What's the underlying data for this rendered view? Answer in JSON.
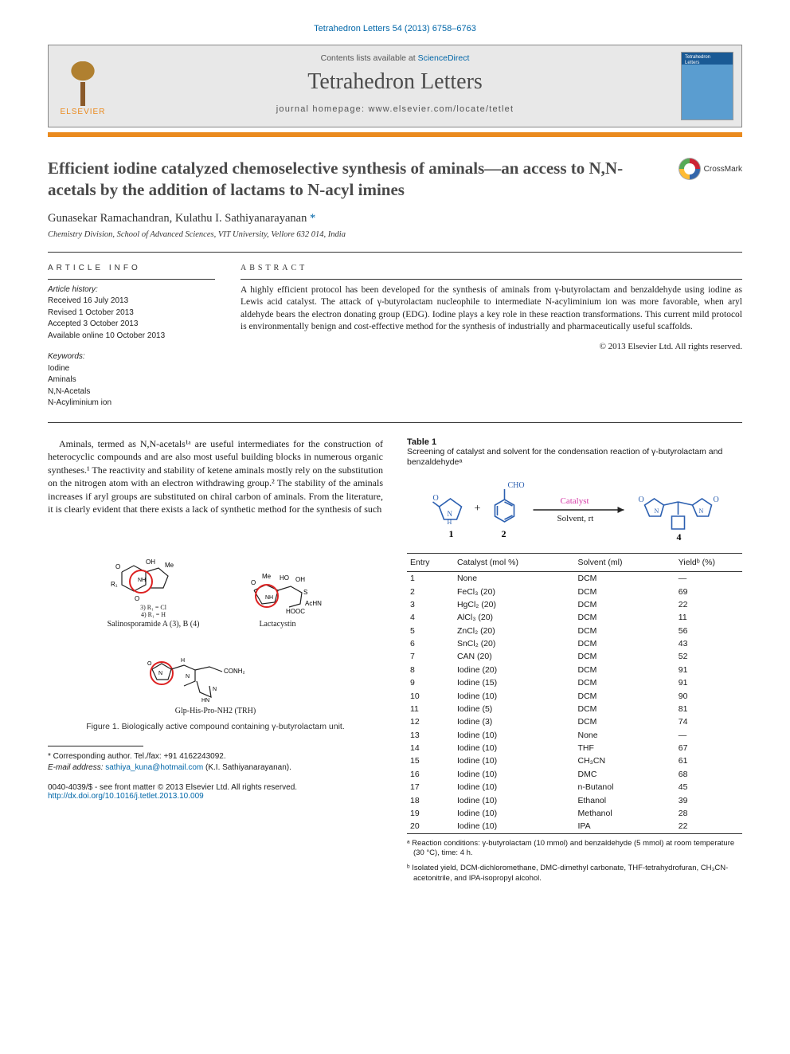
{
  "citation": "Tetrahedron Letters 54 (2013) 6758–6763",
  "masthead": {
    "contents_prefix": "Contents lists available at ",
    "contents_link": "ScienceDirect",
    "journal": "Tetrahedron Letters",
    "homepage_prefix": "journal homepage: ",
    "homepage": "www.elsevier.com/locate/tetlet",
    "publisher": "ELSEVIER",
    "cover_title": "Tetrahedron Letters"
  },
  "colors": {
    "accent_orange": "#ea8a1e",
    "link_blue": "#0066a8",
    "rule": "#333333",
    "masthead_bg": "#e8e8e8",
    "red_highlight": "#d22222"
  },
  "crossmark_label": "CrossMark",
  "title": "Efficient iodine catalyzed chemoselective synthesis of aminals—an access to N,N-acetals by the addition of lactams to N-acyl imines",
  "authors_line": "Gunasekar Ramachandran, Kulathu I. Sathiyanarayanan ",
  "corr_marker": "*",
  "affiliation": "Chemistry Division, School of Advanced Sciences, VIT University, Vellore 632 014, India",
  "article_info": {
    "heading": "article info",
    "history_label": "Article history:",
    "received": "Received 16 July 2013",
    "revised": "Revised 1 October 2013",
    "accepted": "Accepted 3 October 2013",
    "online": "Available online 10 October 2013",
    "keywords_label": "Keywords:",
    "keywords": [
      "Iodine",
      "Aminals",
      "N,N-Acetals",
      "N-Acyliminium ion"
    ]
  },
  "abstract": {
    "heading": "abstract",
    "text": "A highly efficient protocol has been developed for the synthesis of aminals from γ-butyrolactam and benzaldehyde using iodine as Lewis acid catalyst. The attack of γ-butyrolactam nucleophile to intermediate N-acyliminium ion was more favorable, when aryl aldehyde bears the electron donating group (EDG). Iodine plays a key role in these reaction transformations. This current mild protocol is environmentally benign and cost-effective method for the synthesis of industrially and pharmaceutically useful scaffolds.",
    "copyright": "© 2013 Elsevier Ltd. All rights reserved."
  },
  "body_para": "Aminals, termed as N,N-acetals¹ᵃ are useful intermediates for the construction of heterocyclic compounds and are also most useful building blocks in numerous organic syntheses.¹ The reactivity and stability of ketene aminals mostly rely on the substitution on the nitrogen atom with an electron withdrawing group.² The stability of the aminals increases if aryl groups are substituted on chiral carbon of aminals. From the literature, it is clearly evident that there exists a lack of synthetic method for the synthesis of such",
  "figure1": {
    "mol1_name": "Salinosporamide A (3), B (4)",
    "mol1_sub": "3) R₁ = Cl\n4) R₁ = H",
    "mol2_name": "Lactacystin",
    "mol3_name": "Glp-His-Pro-NH2 (TRH)",
    "caption": "Figure 1. Biologically active compound containing γ-butyrolactam unit."
  },
  "footnote": {
    "corr": "* Corresponding author. Tel./fax: +91 4162243092.",
    "email_label": "E-mail address: ",
    "email": "sathiya_kuna@hotmail.com",
    "email_tail": " (K.I. Sathiyanarayanan)."
  },
  "issn": {
    "line1": "0040-4039/$ - see front matter © 2013 Elsevier Ltd. All rights reserved.",
    "doi": "http://dx.doi.org/10.1016/j.tetlet.2013.10.009"
  },
  "table1": {
    "label": "Table 1",
    "caption": "Screening of catalyst and solvent for the condensation reaction of γ-butyrolactam and benzaldehydeᵃ",
    "scheme": {
      "reagent1_num": "1",
      "reagent2_num": "2",
      "reagent2_label": "CHO",
      "arrow_top": "Catalyst",
      "arrow_bottom": "Solvent, rt",
      "product_num": "4",
      "arrow_color": "#d53aa8",
      "reagent_color": "#2b5fb0"
    },
    "columns": [
      "Entry",
      "Catalyst (mol %)",
      "Solvent (ml)",
      "Yieldᵇ (%)"
    ],
    "col_widths": [
      "14%",
      "36%",
      "30%",
      "20%"
    ],
    "rows": [
      [
        "1",
        "None",
        "DCM",
        "—"
      ],
      [
        "2",
        "FeCl₃ (20)",
        "DCM",
        "69"
      ],
      [
        "3",
        "HgCl₂ (20)",
        "DCM",
        "22"
      ],
      [
        "4",
        "AlCl₃ (20)",
        "DCM",
        "11"
      ],
      [
        "5",
        "ZnCl₂ (20)",
        "DCM",
        "56"
      ],
      [
        "6",
        "SnCl₂ (20)",
        "DCM",
        "43"
      ],
      [
        "7",
        "CAN (20)",
        "DCM",
        "52"
      ],
      [
        "8",
        "Iodine (20)",
        "DCM",
        "91"
      ],
      [
        "9",
        "Iodine (15)",
        "DCM",
        "91"
      ],
      [
        "10",
        "Iodine (10)",
        "DCM",
        "90"
      ],
      [
        "11",
        "Iodine (5)",
        "DCM",
        "81"
      ],
      [
        "12",
        "Iodine (3)",
        "DCM",
        "74"
      ],
      [
        "13",
        "Iodine (10)",
        "None",
        "—"
      ],
      [
        "14",
        "Iodine (10)",
        "THF",
        "67"
      ],
      [
        "15",
        "Iodine (10)",
        "CH₃CN",
        "61"
      ],
      [
        "16",
        "Iodine (10)",
        "DMC",
        "68"
      ],
      [
        "17",
        "Iodine (10)",
        "n-Butanol",
        "45"
      ],
      [
        "18",
        "Iodine (10)",
        "Ethanol",
        "39"
      ],
      [
        "19",
        "Iodine (10)",
        "Methanol",
        "28"
      ],
      [
        "20",
        "Iodine (10)",
        "IPA",
        "22"
      ]
    ],
    "notes": [
      "ᵃ Reaction conditions: γ-butyrolactam (10 mmol) and benzaldehyde (5 mmol) at room temperature (30 °C), time: 4 h.",
      "ᵇ Isolated yield, DCM-dichloromethane, DMC-dimethyl carbonate, THF-tetrahydrofuran, CH₃CN-acetonitrile, and IPA-isopropyl alcohol."
    ]
  }
}
